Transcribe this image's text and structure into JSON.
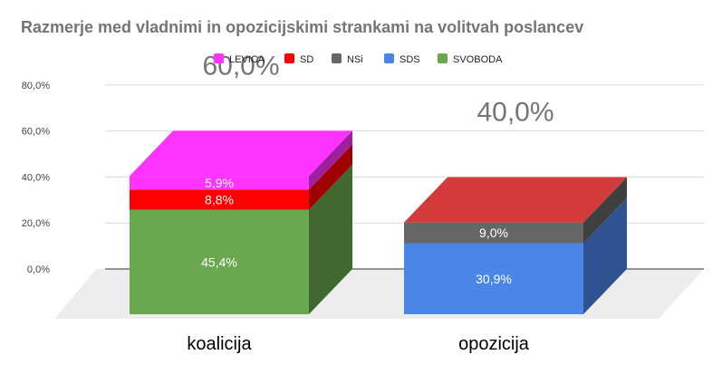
{
  "chart_data": {
    "type": "bar",
    "stacked": true,
    "style": "3d",
    "title": "Razmerje med vladnimi in opozicijskimi strankami na volitvah poslancev",
    "categories": [
      "koalicija",
      "opozicija"
    ],
    "series": [
      {
        "name": "LEVICA",
        "color": "#ff33ff",
        "values": [
          5.9,
          0
        ]
      },
      {
        "name": "SD",
        "color": "#ff0000",
        "values": [
          8.8,
          0
        ]
      },
      {
        "name": "NSi",
        "color": "#666666",
        "values": [
          0,
          9.0
        ]
      },
      {
        "name": "SDS",
        "color": "#4a86e8",
        "values": [
          0,
          30.9
        ]
      },
      {
        "name": "SVOBODA",
        "color": "#6aa84f",
        "values": [
          45.4,
          0
        ]
      }
    ],
    "segment_labels": [
      [
        "5,9%",
        "8,8%",
        "",
        "",
        "45,4%"
      ],
      [
        "",
        "",
        "9,0%",
        "30,9%",
        ""
      ]
    ],
    "totals": [
      "60,0%",
      "40,0%"
    ],
    "ylim": [
      0,
      80
    ],
    "yticks": [
      "0,0%",
      "20,0%",
      "40,0%",
      "60,0%",
      "80,0%"
    ],
    "grid": true,
    "legend": "top"
  }
}
